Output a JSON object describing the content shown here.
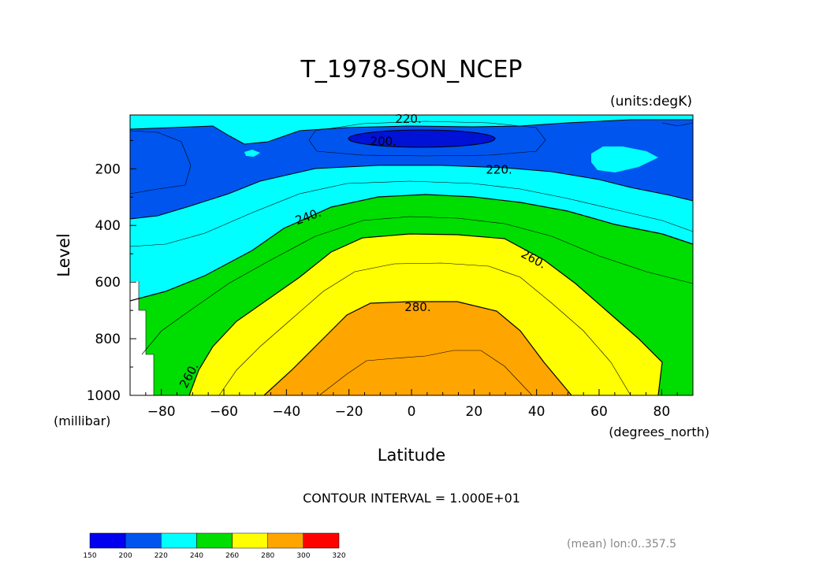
{
  "chart_data": {
    "type": "contour",
    "title": "T_1978-SON_NCEP",
    "units_label": "(units:degK)",
    "xlabel": "Latitude",
    "x_units_label": "(degrees_north)",
    "ylabel": "Level",
    "y_units_label": "(millibar)",
    "xlim": [
      -90,
      90
    ],
    "ylim": [
      1000,
      10
    ],
    "x_ticks": [
      -80,
      -60,
      -40,
      -20,
      0,
      20,
      40,
      60,
      80
    ],
    "y_ticks": [
      200,
      400,
      600,
      800,
      1000
    ],
    "x_tick_labels": [
      "−80",
      "−60",
      "−40",
      "−20",
      "0",
      "20",
      "40",
      "60",
      "80"
    ],
    "y_tick_labels": [
      "200",
      "400",
      "600",
      "800",
      "1000"
    ],
    "contour_interval_text": "CONTOUR INTERVAL = 1.000E+01",
    "contour_labels": [
      {
        "text": "220.",
        "lat": -1,
        "level": 25
      },
      {
        "text": "200.",
        "lat": -9,
        "level": 105
      },
      {
        "text": "220.",
        "lat": 28,
        "level": 205
      },
      {
        "text": "240.",
        "lat": -33,
        "level": 370
      },
      {
        "text": "260.",
        "lat": 39,
        "level": 520
      },
      {
        "text": "280.",
        "lat": 2,
        "level": 690
      },
      {
        "text": "260.",
        "lat": -71,
        "level": 930
      }
    ],
    "filled_regions": [
      {
        "range": [
          200,
          210
        ],
        "color": "#0012d6"
      },
      {
        "range": [
          210,
          220
        ],
        "color": "#0055ee"
      },
      {
        "range": [
          220,
          240
        ],
        "color": "#00ffff"
      },
      {
        "range": [
          240,
          260
        ],
        "color": "#00dd00"
      },
      {
        "range": [
          260,
          280
        ],
        "color": "#ffff00"
      },
      {
        "range": [
          280,
          300
        ],
        "color": "#ffa500"
      }
    ],
    "colorbar": {
      "labels": [
        "150",
        "200",
        "220",
        "240",
        "260",
        "280",
        "300",
        "320"
      ],
      "colors": [
        "#0000ee",
        "#0055ee",
        "#00ffff",
        "#00dd00",
        "#ffff00",
        "#ffa500",
        "#ff0000"
      ]
    },
    "footnote": "(mean) lon:0..357.5"
  }
}
